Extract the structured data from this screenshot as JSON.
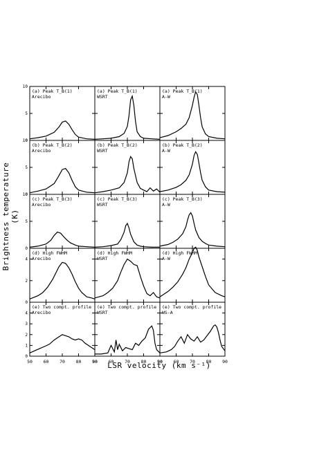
{
  "figure": {
    "ylabel": "Brightness temperature (K)",
    "xlabel": "LSR velocity (km s⁻¹)"
  },
  "chart_data": {
    "type": "line",
    "layout": "5 rows x 3 columns of panels",
    "x_ticks": [
      50,
      60,
      70,
      80,
      90
    ],
    "xlim": [
      50,
      90
    ],
    "panels": [
      {
        "row": 0,
        "col": 0,
        "line1": "(a) Peak T_B(1)",
        "line2": "Arecibo",
        "ylim": [
          0,
          10
        ],
        "yticks": [
          0,
          5,
          10
        ],
        "x": [
          50,
          55,
          60,
          65,
          68,
          70,
          72,
          74,
          76,
          78,
          80,
          85,
          90
        ],
        "y": [
          0.3,
          0.5,
          0.8,
          1.5,
          2.5,
          3.4,
          3.6,
          3.0,
          2.0,
          1.1,
          0.6,
          0.3,
          0.2
        ]
      },
      {
        "row": 0,
        "col": 1,
        "line1": "(a) Peak T_B(1)",
        "line2": "WSRT",
        "ylim": [
          0,
          10
        ],
        "yticks": [
          0,
          5,
          10
        ],
        "x": [
          50,
          55,
          60,
          65,
          68,
          70,
          71,
          72,
          73,
          74,
          75,
          76,
          78,
          80,
          85,
          90
        ],
        "y": [
          0.2,
          0.3,
          0.4,
          0.7,
          1.3,
          2.6,
          4.5,
          7.5,
          8.2,
          6.5,
          3.5,
          1.6,
          0.7,
          0.4,
          0.3,
          0.2
        ]
      },
      {
        "row": 0,
        "col": 2,
        "line1": "(a) Peak T_B(1)",
        "line2": "A-W",
        "ylim": [
          0,
          10
        ],
        "yticks": [
          0,
          5,
          10
        ],
        "x": [
          50,
          55,
          60,
          63,
          66,
          68,
          70,
          71,
          72,
          73,
          74,
          75,
          76,
          78,
          80,
          85,
          90
        ],
        "y": [
          0.5,
          0.9,
          1.6,
          2.2,
          3.0,
          4.2,
          6.5,
          8.0,
          9.0,
          8.5,
          6.5,
          4.2,
          2.5,
          1.2,
          0.7,
          0.4,
          0.3
        ]
      },
      {
        "row": 1,
        "col": 0,
        "line1": "(b) Peak T_B(2)",
        "line2": "Arecibo",
        "ylim": [
          0,
          10
        ],
        "yticks": [
          0,
          5,
          10
        ],
        "x": [
          50,
          55,
          60,
          65,
          68,
          70,
          72,
          74,
          76,
          78,
          80,
          85,
          90
        ],
        "y": [
          0.3,
          0.6,
          1.0,
          2.0,
          3.5,
          4.6,
          4.8,
          4.0,
          2.6,
          1.4,
          0.8,
          0.4,
          0.3
        ]
      },
      {
        "row": 1,
        "col": 1,
        "line1": "(b) Peak T_B(2)",
        "line2": "WSRT",
        "ylim": [
          0,
          10
        ],
        "yticks": [
          0,
          5,
          10
        ],
        "x": [
          50,
          55,
          60,
          65,
          68,
          70,
          71,
          72,
          73,
          74,
          76,
          78,
          80,
          82,
          84,
          86,
          88,
          90
        ],
        "y": [
          0.3,
          0.5,
          0.8,
          1.2,
          2.2,
          4.0,
          6.0,
          7.0,
          6.6,
          4.8,
          2.2,
          1.1,
          0.8,
          0.5,
          1.2,
          0.6,
          1.0,
          0.4
        ]
      },
      {
        "row": 1,
        "col": 2,
        "line1": "(b) Peak T_B(2)",
        "line2": "A-W",
        "ylim": [
          0,
          10
        ],
        "yticks": [
          0,
          5,
          10
        ],
        "x": [
          50,
          55,
          60,
          63,
          66,
          68,
          70,
          71,
          72,
          73,
          74,
          75,
          76,
          78,
          80,
          85,
          90
        ],
        "y": [
          0.5,
          0.8,
          1.3,
          1.8,
          2.6,
          3.6,
          5.6,
          7.2,
          7.9,
          7.4,
          5.8,
          4.0,
          2.6,
          1.4,
          0.8,
          0.5,
          0.4
        ]
      },
      {
        "row": 2,
        "col": 0,
        "line1": "(c) Peak T_B(3)",
        "line2": "Arecibo",
        "ylim": [
          0,
          10
        ],
        "yticks": [
          0,
          5,
          10
        ],
        "x": [
          50,
          55,
          60,
          63,
          65,
          67,
          69,
          71,
          73,
          75,
          78,
          80,
          85,
          90
        ],
        "y": [
          0.2,
          0.4,
          0.8,
          1.5,
          2.4,
          3.0,
          2.8,
          2.1,
          1.5,
          1.0,
          0.6,
          0.4,
          0.3,
          0.2
        ]
      },
      {
        "row": 2,
        "col": 1,
        "line1": "(c) Peak T_B(3)",
        "line2": "WSRT",
        "ylim": [
          0,
          10
        ],
        "yticks": [
          0,
          5,
          10
        ],
        "x": [
          50,
          55,
          60,
          64,
          66,
          68,
          69,
          70,
          71,
          72,
          74,
          76,
          78,
          80,
          85,
          90
        ],
        "y": [
          0.2,
          0.3,
          0.5,
          0.8,
          1.6,
          3.0,
          4.2,
          4.6,
          3.8,
          2.6,
          1.2,
          0.6,
          0.4,
          0.3,
          0.2,
          0.2
        ]
      },
      {
        "row": 2,
        "col": 2,
        "line1": "(c) Peak T_B(3)",
        "line2": "A-W",
        "ylim": [
          0,
          10
        ],
        "yticks": [
          0,
          5,
          10
        ],
        "x": [
          50,
          55,
          58,
          61,
          64,
          66,
          67,
          68,
          69,
          70,
          71,
          72,
          74,
          76,
          78,
          80,
          85,
          90
        ],
        "y": [
          0.4,
          0.7,
          1.1,
          1.7,
          2.7,
          4.0,
          5.2,
          6.2,
          6.6,
          6.0,
          4.6,
          3.4,
          2.0,
          1.3,
          0.9,
          0.6,
          0.4,
          0.3
        ]
      },
      {
        "row": 3,
        "col": 0,
        "line1": "(d) High FWHM",
        "line2": "Arecibo",
        "ylim": [
          0,
          5
        ],
        "yticks": [
          0,
          2,
          4
        ],
        "x": [
          50,
          55,
          58,
          61,
          64,
          66,
          68,
          70,
          72,
          74,
          76,
          78,
          80,
          82,
          85,
          88,
          90
        ],
        "y": [
          0.3,
          0.6,
          0.9,
          1.4,
          2.1,
          2.7,
          3.3,
          3.7,
          3.6,
          3.2,
          2.6,
          1.9,
          1.3,
          0.9,
          0.5,
          0.4,
          0.3
        ]
      },
      {
        "row": 3,
        "col": 1,
        "line1": "(d) High FWHM",
        "line2": "WSRT",
        "ylim": [
          0,
          5
        ],
        "yticks": [
          0,
          2,
          4
        ],
        "x": [
          50,
          55,
          58,
          61,
          64,
          66,
          68,
          70,
          72,
          74,
          76,
          78,
          80,
          82,
          84,
          86,
          88,
          90
        ],
        "y": [
          0.4,
          0.6,
          0.9,
          1.3,
          2.0,
          2.8,
          3.5,
          4.0,
          3.8,
          3.5,
          3.4,
          2.4,
          1.5,
          0.8,
          0.6,
          0.9,
          0.5,
          0.4
        ]
      },
      {
        "row": 3,
        "col": 2,
        "line1": "(d) High FWHM",
        "line2": "A-W",
        "ylim": [
          0,
          5
        ],
        "yticks": [
          0,
          2,
          4
        ],
        "x": [
          50,
          55,
          58,
          61,
          64,
          66,
          68,
          70,
          71,
          72,
          73,
          74,
          76,
          78,
          80,
          84,
          88,
          90
        ],
        "y": [
          0.5,
          1.0,
          1.4,
          1.9,
          2.6,
          3.2,
          4.0,
          4.6,
          5.0,
          5.1,
          4.8,
          4.2,
          3.3,
          2.4,
          1.6,
          0.9,
          0.6,
          0.5
        ]
      },
      {
        "row": 4,
        "col": 0,
        "line1": "(e) Two compt. profile",
        "line2": "Arecibo",
        "ylim": [
          0,
          5
        ],
        "yticks": [
          0,
          1,
          2,
          3,
          4
        ],
        "x": [
          50,
          53,
          56,
          59,
          62,
          65,
          68,
          70,
          72,
          74,
          76,
          78,
          80,
          82,
          84,
          86,
          88,
          90
        ],
        "y": [
          0.3,
          0.5,
          0.7,
          0.9,
          1.1,
          1.5,
          1.8,
          2.0,
          1.9,
          1.8,
          1.6,
          1.5,
          1.6,
          1.5,
          1.2,
          1.0,
          0.8,
          0.6
        ]
      },
      {
        "row": 4,
        "col": 1,
        "line1": "(e) Two compt. profile",
        "line2": "WSRT",
        "ylim": [
          0,
          5
        ],
        "yticks": [
          0,
          1,
          2,
          3,
          4
        ],
        "x": [
          50,
          54,
          58,
          60,
          62,
          63,
          64,
          65,
          67,
          69,
          71,
          73,
          75,
          77,
          79,
          81,
          83,
          85,
          86,
          87,
          88,
          90
        ],
        "y": [
          0.2,
          0.2,
          0.3,
          1.0,
          0.4,
          1.5,
          0.6,
          1.1,
          0.5,
          0.8,
          0.7,
          0.6,
          1.2,
          1.0,
          1.4,
          1.7,
          2.5,
          2.8,
          2.4,
          1.2,
          0.6,
          0.3
        ]
      },
      {
        "row": 4,
        "col": 2,
        "line1": "(e) Two compt. profile",
        "line2": "WS-A",
        "ylim": [
          0,
          5
        ],
        "yticks": [
          0,
          1,
          2,
          3,
          4
        ],
        "x": [
          50,
          54,
          57,
          59,
          61,
          63,
          65,
          67,
          69,
          71,
          73,
          75,
          77,
          79,
          81,
          83,
          84,
          85,
          86,
          87,
          88,
          90
        ],
        "y": [
          0.3,
          0.4,
          0.6,
          0.9,
          1.4,
          1.8,
          1.2,
          2.0,
          1.6,
          1.4,
          1.8,
          1.3,
          1.5,
          1.9,
          2.3,
          2.8,
          2.9,
          2.7,
          2.2,
          1.5,
          0.9,
          0.5
        ]
      }
    ]
  }
}
